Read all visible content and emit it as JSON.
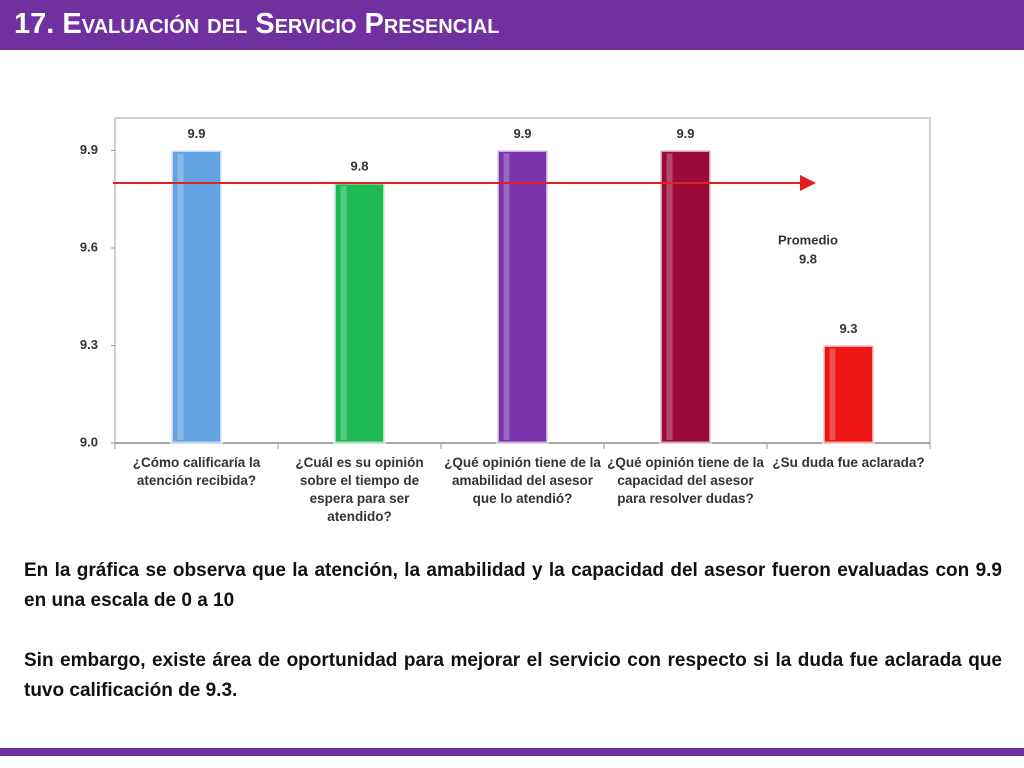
{
  "header": {
    "title": "17. Evaluación del Servicio Presencial"
  },
  "chart_data": {
    "type": "bar",
    "categories": [
      "¿Cómo calificaría la atención recibida?",
      "¿Cuál es su opinión sobre el tiempo de espera para ser atendido?",
      "¿Qué opinión tiene de la amabilidad del asesor que lo atendió?",
      "¿Qué opinión tiene de la capacidad del asesor para resolver dudas?",
      "¿Su duda fue aclarada?"
    ],
    "values": [
      9.9,
      9.8,
      9.9,
      9.9,
      9.3
    ],
    "colors": [
      "#64a3e2",
      "#1cb954",
      "#7a33aa",
      "#9c0a3c",
      "#ee1515"
    ],
    "ylim": [
      9.0,
      10.0
    ],
    "yticks": [
      {
        "value": 9,
        "label": "9.0"
      },
      9.3,
      9.6,
      9.9
    ],
    "average": {
      "label": "Promedio",
      "value": 9.8,
      "color": "#e02020"
    }
  },
  "text": {
    "paragraphs": [
      "En la gráfica se observa que la atención, la amabilidad y la capacidad del asesor fueron evaluadas con 9.9 en una escala de 0 a 10",
      "Sin embargo, existe área de oportunidad para mejorar el servicio con respecto si la duda fue aclarada que tuvo calificación de 9.3."
    ]
  }
}
